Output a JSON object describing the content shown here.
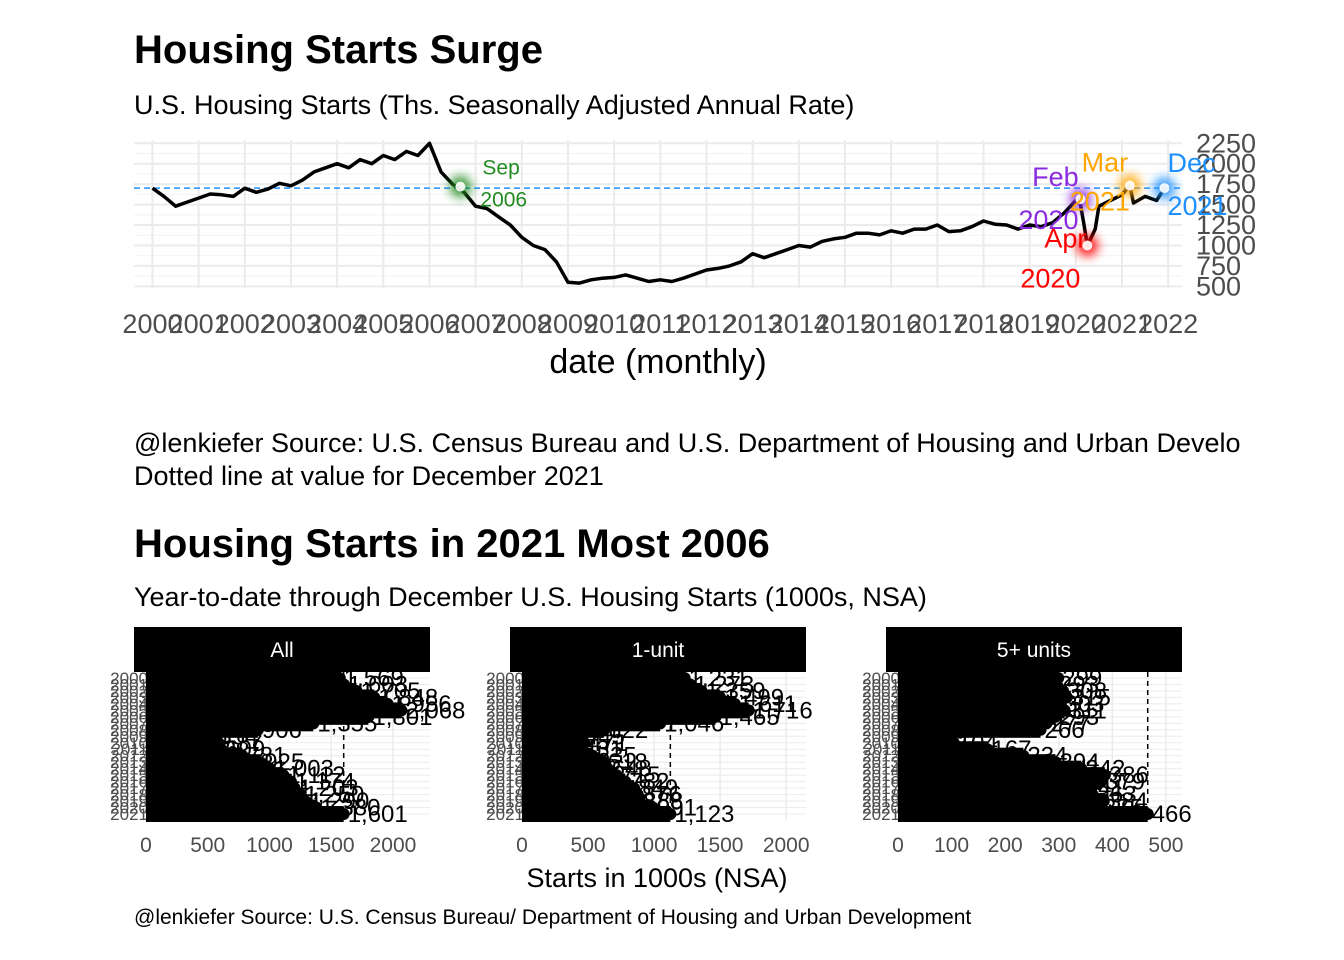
{
  "chart_data": [
    {
      "type": "line",
      "title": "Housing Starts Surge",
      "subtitle": "U.S. Housing Starts (Ths. Seasonally Adjusted Annual Rate)",
      "xlabel": "date (monthly)",
      "ylabel": "",
      "x_ticks": [
        "2000",
        "2001",
        "2002",
        "2003",
        "2004",
        "2005",
        "2006",
        "2007",
        "2008",
        "2009",
        "2010",
        "2011",
        "2012",
        "2013",
        "2014",
        "2015",
        "2016",
        "2017",
        "2018",
        "2019",
        "2020",
        "2021",
        "2022"
      ],
      "y_ticks": [
        500,
        750,
        1000,
        1250,
        1500,
        1750,
        2000,
        2250
      ],
      "ylim": [
        480,
        2290
      ],
      "xlim": [
        1999.6,
        2022.3
      ],
      "reference_line": {
        "value": 1702,
        "style": "dashed",
        "color": "#1e90ff"
      },
      "caption": [
        "@lenkiefer Source: U.S. Census Bureau and U.S. Department of Housing and Urban Develo",
        "Dotted line at value for December 2021"
      ],
      "series": [
        {
          "x": [
            2000.0,
            2000.25,
            2000.5,
            2000.75,
            2001.0,
            2001.25,
            2001.5,
            2001.75,
            2002.0,
            2002.25,
            2002.5,
            2002.75,
            2003.0,
            2003.25,
            2003.5,
            2003.75,
            2004.0,
            2004.25,
            2004.5,
            2004.75,
            2005.0,
            2005.25,
            2005.5,
            2005.75,
            2006.0,
            2006.25,
            2006.5,
            2006.75,
            2007.0,
            2007.25,
            2007.5,
            2007.75,
            2008.0,
            2008.25,
            2008.5,
            2008.75,
            2009.0,
            2009.25,
            2009.5,
            2009.75,
            2010.0,
            2010.25,
            2010.5,
            2010.75,
            2011.0,
            2011.25,
            2011.5,
            2011.75,
            2012.0,
            2012.25,
            2012.5,
            2012.75,
            2013.0,
            2013.25,
            2013.5,
            2013.75,
            2014.0,
            2014.25,
            2014.5,
            2014.75,
            2015.0,
            2015.25,
            2015.5,
            2015.75,
            2016.0,
            2016.25,
            2016.5,
            2016.75,
            2017.0,
            2017.25,
            2017.5,
            2017.75,
            2018.0,
            2018.25,
            2018.5,
            2018.75,
            2019.0,
            2019.25,
            2019.5,
            2019.75,
            2020.0,
            2020.08,
            2020.17,
            2020.25,
            2020.42,
            2020.5,
            2020.75,
            2021.0,
            2021.17,
            2021.25,
            2021.5,
            2021.75,
            2021.92
          ],
          "y": [
            1700,
            1600,
            1480,
            1530,
            1580,
            1630,
            1620,
            1600,
            1700,
            1650,
            1690,
            1760,
            1730,
            1800,
            1900,
            1950,
            2000,
            1950,
            2050,
            2000,
            2100,
            2050,
            2150,
            2100,
            2250,
            1900,
            1750,
            1650,
            1480,
            1450,
            1350,
            1250,
            1100,
            1000,
            950,
            800,
            550,
            540,
            580,
            600,
            610,
            640,
            600,
            560,
            580,
            560,
            600,
            650,
            700,
            720,
            750,
            800,
            900,
            850,
            900,
            950,
            1000,
            980,
            1050,
            1080,
            1100,
            1150,
            1150,
            1130,
            1180,
            1150,
            1200,
            1200,
            1250,
            1170,
            1180,
            1230,
            1300,
            1260,
            1250,
            1200,
            1250,
            1230,
            1280,
            1400,
            1550,
            1567,
            1276,
            1000,
            1200,
            1480,
            1550,
            1620,
            1733,
            1520,
            1600,
            1550,
            1702
          ],
          "color": "#000000"
        }
      ],
      "annotations": [
        {
          "date": [
            2006.67,
            "Sep",
            "2006"
          ],
          "value": 1720,
          "color": "#228b22"
        },
        {
          "date": [
            2020.1,
            "Feb",
            "2020"
          ],
          "value": 1567,
          "color": "#8a2be2"
        },
        {
          "date": [
            2020.25,
            "Apr",
            "2020"
          ],
          "value": 1000,
          "color": "#ff0000"
        },
        {
          "date": [
            2021.17,
            "Mar",
            "2021"
          ],
          "value": 1733,
          "color": "#ffa500"
        },
        {
          "date": [
            2021.92,
            "Dec",
            "2021"
          ],
          "value": 1702,
          "color": "#1e90ff"
        }
      ]
    },
    {
      "type": "bar",
      "title": "Housing Starts in 2021 Most 2006",
      "subtitle": "Year-to-date through December U.S. Housing Starts (1000s, NSA)",
      "xlabel": "Starts in 1000s (NSA)",
      "caption": "@lenkiefer Source: U.S. Census Bureau/ Department of Housing and Urban Development",
      "categories": [
        "2000",
        "2001",
        "2002",
        "2003",
        "2004",
        "2005",
        "2006",
        "2007",
        "2008",
        "2009",
        "2010",
        "2011",
        "2012",
        "2013",
        "2014",
        "2015",
        "2016",
        "2017",
        "2018",
        "2019",
        "2020",
        "2021"
      ],
      "y_tick_labels": [
        "2000",
        "2001",
        "2002",
        "2003",
        "2004",
        "2005",
        "2006",
        "2007",
        "2008",
        "2009",
        "2010",
        "2011",
        "2012",
        "2013",
        "2014",
        "2015",
        "2016",
        "2017",
        "2018",
        "2019",
        "2020",
        "2021"
      ],
      "facets": [
        {
          "name": "All",
          "x_ticks": [
            0,
            500,
            1000,
            1500,
            2000
          ],
          "xlim": [
            -100,
            2300
          ],
          "values": [
            1569,
            1603,
            1705,
            1848,
            1956,
            2068,
            1801,
            1355,
            906,
            554,
            587,
            609,
            781,
            925,
            1003,
            1112,
            1174,
            1203,
            1250,
            1290,
            1380,
            1601
          ],
          "reference_value": 1601,
          "labels": [
            "1,569",
            "1,603",
            "1,705",
            "1,848",
            "1,956",
            "2,068",
            "1,801",
            "1,355",
            "906",
            "554",
            "587",
            "609",
            "781",
            "925",
            "1,003",
            "1,112",
            "1,174",
            "1,203",
            "1,250",
            "1,290",
            "1,380",
            "1,601"
          ]
        },
        {
          "name": "1-unit",
          "x_ticks": [
            0,
            500,
            1000,
            1500,
            2000
          ],
          "xlim": [
            -100,
            2150
          ],
          "values": [
            1231,
            1273,
            1359,
            1499,
            1611,
            1716,
            1465,
            1046,
            622,
            445,
            471,
            431,
            535,
            618,
            648,
            715,
            782,
            849,
            876,
            888,
            991,
            1123
          ],
          "reference_value": 1123,
          "labels": [
            "1,231",
            "1,273",
            "1,359",
            "1,499",
            "1,611",
            "1,716",
            "1,465",
            "1,046",
            "622",
            "445",
            "471",
            "431",
            "535",
            "618",
            "648",
            "715",
            "782",
            "849",
            "876",
            "888",
            "991",
            "1,123"
          ]
        },
        {
          "name": "5+ units",
          "x_ticks": [
            0,
            100,
            200,
            300,
            400,
            500
          ],
          "xlim": [
            -20,
            530
          ],
          "values": [
            299,
            293,
            308,
            315,
            303,
            311,
            293,
            277,
            266,
            97,
            104,
            167,
            234,
            294,
            342,
            386,
            379,
            341,
            363,
            384,
            375,
            466
          ],
          "reference_value": 466,
          "labels": [
            "299",
            "293",
            "308",
            "315",
            "303",
            "311",
            "293",
            "277",
            "266",
            "97",
            "104",
            "167",
            "234",
            "294",
            "342",
            "386",
            "379",
            "341",
            "363",
            "384",
            "375",
            "466"
          ]
        }
      ]
    }
  ]
}
